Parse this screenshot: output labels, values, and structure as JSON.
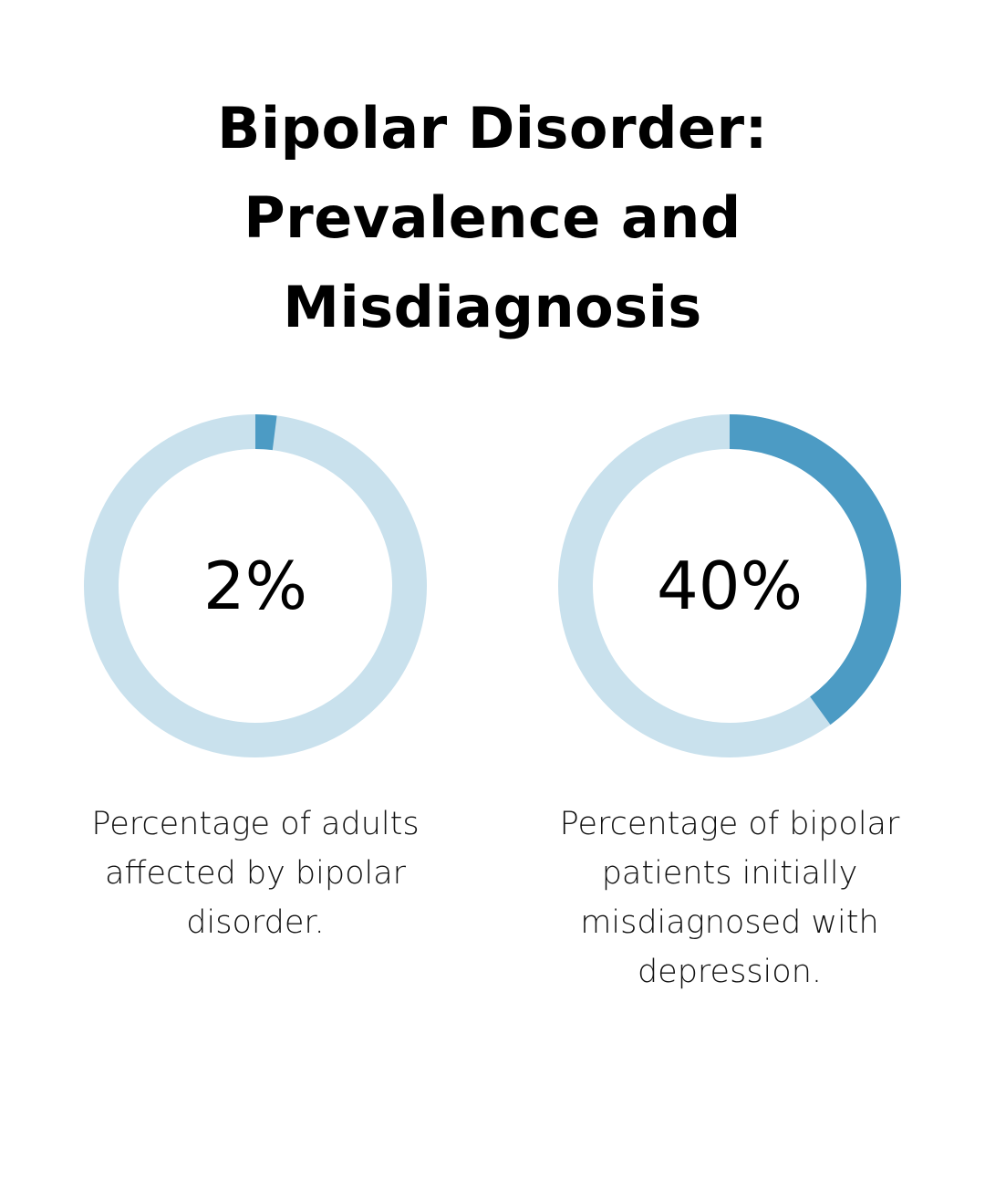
{
  "title": "Bipolar Disorder: Prevalence and Misdiagnosis",
  "colors": {
    "track": "#c9e1ed",
    "fill": "#4c9bc4"
  },
  "chart_data": [
    {
      "type": "pie",
      "value": 2,
      "max": 100,
      "label": "2%",
      "caption": "Percentage of adults affected by bipolar disorder."
    },
    {
      "type": "pie",
      "value": 40,
      "max": 100,
      "label": "40%",
      "caption": "Percentage of bipolar patients initially misdiagnosed with depression."
    }
  ]
}
